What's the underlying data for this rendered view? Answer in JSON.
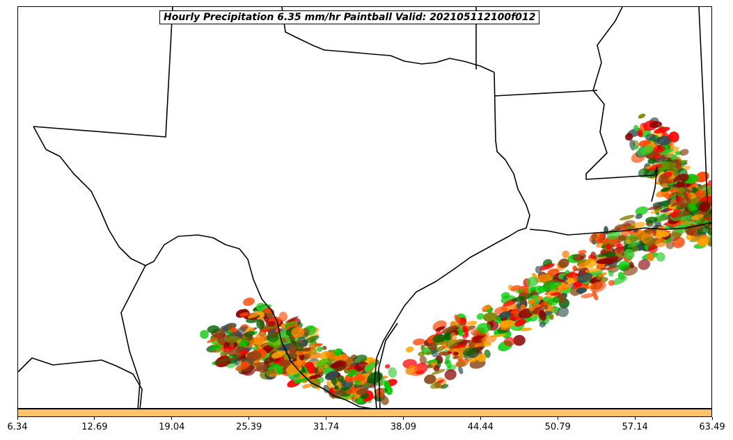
{
  "title": "Hourly Precipitation 6.35 mm/hr Paintball Valid: 202105112100f012",
  "colorbar": {
    "color": "#ffc266",
    "ticks": [
      "6.34",
      "12.69",
      "19.04",
      "25.39",
      "31.74",
      "38.09",
      "44.44",
      "50.79",
      "57.14",
      "63.49"
    ]
  },
  "paintball_colors": [
    "#ff0000",
    "#ff7f00",
    "#ffa500",
    "#8b0000",
    "#006400",
    "#00cc00",
    "#808000",
    "#8b4513",
    "#ff4500",
    "#2f4f4f",
    "#32cd32"
  ]
}
